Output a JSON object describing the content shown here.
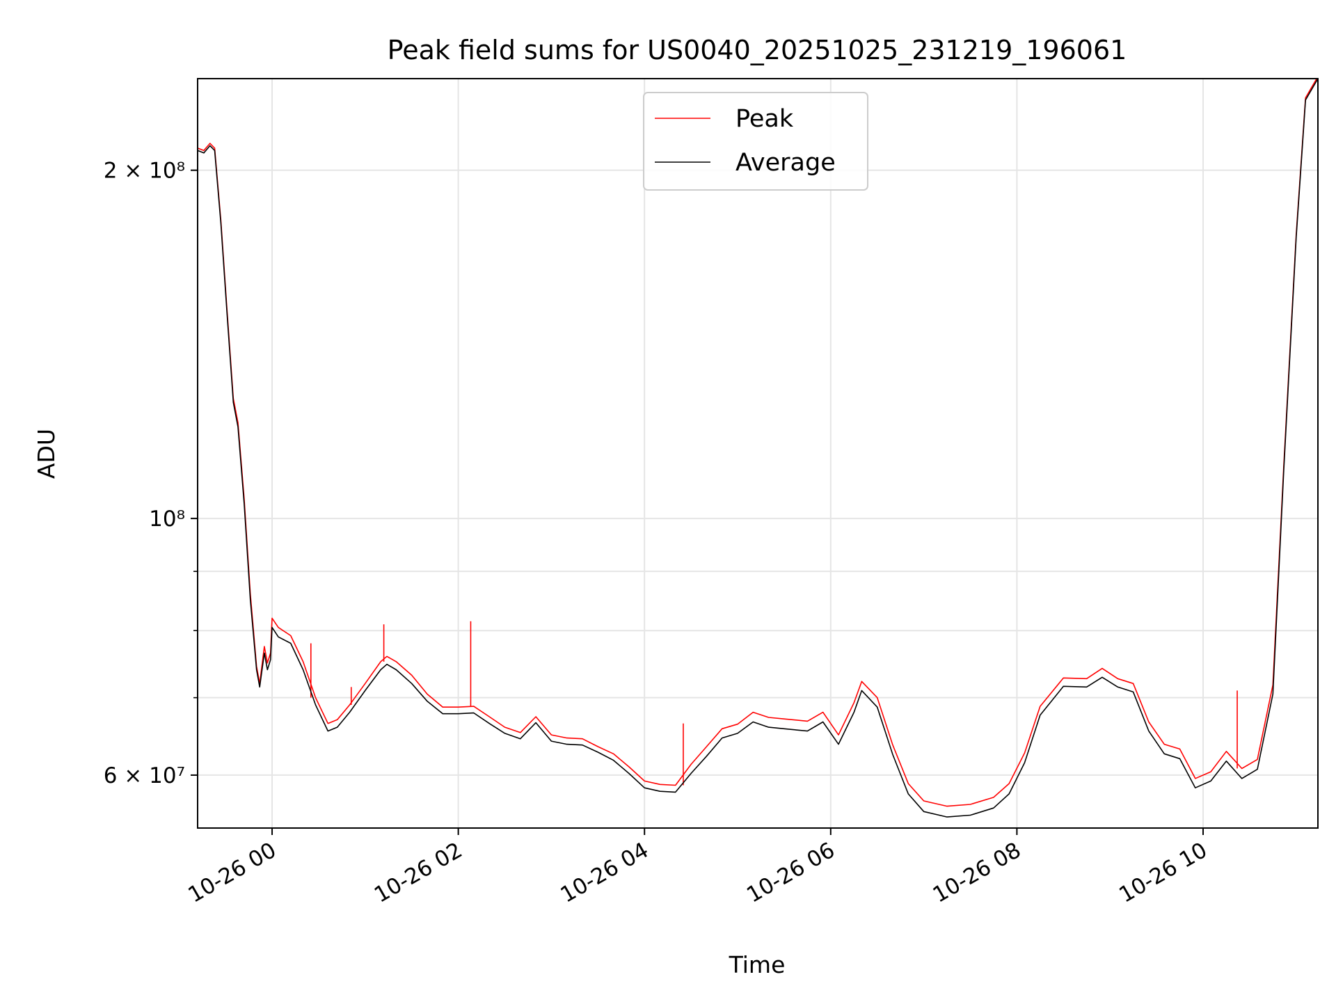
{
  "chart_data": {
    "type": "line",
    "title": "Peak field sums for US0040_20251025_231219_196061",
    "xlabel": "Time",
    "ylabel": "ADU",
    "y_scale": "log",
    "ylim": [
      54000000,
      240000000
    ],
    "xlim": [
      "2025-10-25 23:12",
      "2025-10-26 11:14"
    ],
    "grid": true,
    "legend_position": "upper center",
    "x_ticks": [
      {
        "x": "2025-10-26 00:00",
        "label": "10-26 00"
      },
      {
        "x": "2025-10-26 02:00",
        "label": "10-26 02"
      },
      {
        "x": "2025-10-26 04:00",
        "label": "10-26 04"
      },
      {
        "x": "2025-10-26 06:00",
        "label": "10-26 06"
      },
      {
        "x": "2025-10-26 08:00",
        "label": "10-26 08"
      },
      {
        "x": "2025-10-26 10:00",
        "label": "10-26 10"
      }
    ],
    "y_ticks": [
      {
        "value": 60000000,
        "label": "6 × 10⁷"
      },
      {
        "value": 100000000,
        "label": "10⁸"
      },
      {
        "value": 200000000,
        "label": "2 × 10⁸"
      }
    ],
    "y_minor_ticks": [
      70000000,
      80000000,
      90000000
    ],
    "series": [
      {
        "name": "Average",
        "color": "#000000",
        "points": [
          [
            "2025-10-25 23:12",
            208000000
          ],
          [
            "2025-10-25 23:16",
            207000000
          ],
          [
            "2025-10-25 23:20",
            210000000
          ],
          [
            "2025-10-25 23:23",
            208000000
          ],
          [
            "2025-10-25 23:27",
            180000000
          ],
          [
            "2025-10-25 23:31",
            150000000
          ],
          [
            "2025-10-25 23:35",
            126000000
          ],
          [
            "2025-10-25 23:38",
            120000000
          ],
          [
            "2025-10-25 23:42",
            103000000
          ],
          [
            "2025-10-25 23:46",
            85000000
          ],
          [
            "2025-10-25 23:50",
            74000000
          ],
          [
            "2025-10-25 23:52",
            71500000
          ],
          [
            "2025-10-25 23:55",
            76500000
          ],
          [
            "2025-10-25 23:57",
            74000000
          ],
          [
            "2025-10-25 23:59",
            75500000
          ],
          [
            "2025-10-26 00:00",
            80500000
          ],
          [
            "2025-10-26 00:04",
            79000000
          ],
          [
            "2025-10-26 00:12",
            78000000
          ],
          [
            "2025-10-26 00:20",
            74000000
          ],
          [
            "2025-10-26 00:28",
            69000000
          ],
          [
            "2025-10-26 00:36",
            65500000
          ],
          [
            "2025-10-26 00:42",
            66000000
          ],
          [
            "2025-10-26 00:50",
            68000000
          ],
          [
            "2025-10-26 01:00",
            71000000
          ],
          [
            "2025-10-26 01:10",
            74000000
          ],
          [
            "2025-10-26 01:14",
            74800000
          ],
          [
            "2025-10-26 01:20",
            74000000
          ],
          [
            "2025-10-26 01:30",
            72000000
          ],
          [
            "2025-10-26 01:40",
            69500000
          ],
          [
            "2025-10-26 01:50",
            67800000
          ],
          [
            "2025-10-26 02:00",
            67800000
          ],
          [
            "2025-10-26 02:10",
            67900000
          ],
          [
            "2025-10-26 02:20",
            66500000
          ],
          [
            "2025-10-26 02:30",
            65200000
          ],
          [
            "2025-10-26 02:40",
            64500000
          ],
          [
            "2025-10-26 02:50",
            66600000
          ],
          [
            "2025-10-26 03:00",
            64200000
          ],
          [
            "2025-10-26 03:10",
            63800000
          ],
          [
            "2025-10-26 03:20",
            63700000
          ],
          [
            "2025-10-26 03:30",
            62800000
          ],
          [
            "2025-10-26 03:40",
            61800000
          ],
          [
            "2025-10-26 03:50",
            60200000
          ],
          [
            "2025-10-26 04:00",
            58500000
          ],
          [
            "2025-10-26 04:10",
            58100000
          ],
          [
            "2025-10-26 04:20",
            58000000
          ],
          [
            "2025-10-26 04:30",
            60200000
          ],
          [
            "2025-10-26 04:40",
            62300000
          ],
          [
            "2025-10-26 04:50",
            64600000
          ],
          [
            "2025-10-26 05:00",
            65200000
          ],
          [
            "2025-10-26 05:10",
            66700000
          ],
          [
            "2025-10-26 05:20",
            66000000
          ],
          [
            "2025-10-26 05:30",
            65800000
          ],
          [
            "2025-10-26 05:45",
            65500000
          ],
          [
            "2025-10-26 05:55",
            66700000
          ],
          [
            "2025-10-26 06:05",
            63800000
          ],
          [
            "2025-10-26 06:15",
            68000000
          ],
          [
            "2025-10-26 06:20",
            71000000
          ],
          [
            "2025-10-26 06:30",
            68700000
          ],
          [
            "2025-10-26 06:40",
            62500000
          ],
          [
            "2025-10-26 06:50",
            57800000
          ],
          [
            "2025-10-26 07:00",
            55800000
          ],
          [
            "2025-10-26 07:15",
            55200000
          ],
          [
            "2025-10-26 07:30",
            55400000
          ],
          [
            "2025-10-26 07:45",
            56200000
          ],
          [
            "2025-10-26 07:55",
            57800000
          ],
          [
            "2025-10-26 08:05",
            61500000
          ],
          [
            "2025-10-26 08:15",
            67600000
          ],
          [
            "2025-10-26 08:30",
            71600000
          ],
          [
            "2025-10-26 08:45",
            71500000
          ],
          [
            "2025-10-26 08:55",
            72900000
          ],
          [
            "2025-10-26 09:05",
            71500000
          ],
          [
            "2025-10-26 09:15",
            70800000
          ],
          [
            "2025-10-26 09:25",
            65500000
          ],
          [
            "2025-10-26 09:35",
            62600000
          ],
          [
            "2025-10-26 09:45",
            62000000
          ],
          [
            "2025-10-26 09:55",
            58500000
          ],
          [
            "2025-10-26 10:05",
            59300000
          ],
          [
            "2025-10-26 10:15",
            61700000
          ],
          [
            "2025-10-26 10:25",
            59600000
          ],
          [
            "2025-10-26 10:35",
            60700000
          ],
          [
            "2025-10-26 10:45",
            70500000
          ],
          [
            "2025-10-26 10:52",
            110000000
          ],
          [
            "2025-10-26 11:00",
            175000000
          ],
          [
            "2025-10-26 11:06",
            230000000
          ],
          [
            "2025-10-26 11:14",
            240000000
          ]
        ]
      },
      {
        "name": "Peak",
        "color": "#ff0000",
        "points": [
          [
            "2025-10-25 23:12",
            209000000
          ],
          [
            "2025-10-25 23:16",
            208000000
          ],
          [
            "2025-10-25 23:20",
            211000000
          ],
          [
            "2025-10-25 23:23",
            209000000
          ],
          [
            "2025-10-25 23:27",
            181000000
          ],
          [
            "2025-10-25 23:31",
            151000000
          ],
          [
            "2025-10-25 23:35",
            127000000
          ],
          [
            "2025-10-25 23:38",
            121000000
          ],
          [
            "2025-10-25 23:42",
            104000000
          ],
          [
            "2025-10-25 23:46",
            86000000
          ],
          [
            "2025-10-25 23:50",
            74500000
          ],
          [
            "2025-10-25 23:52",
            72000000
          ],
          [
            "2025-10-25 23:55",
            77500000
          ],
          [
            "2025-10-25 23:57",
            75000000
          ],
          [
            "2025-10-25 23:59",
            76500000
          ],
          [
            "2025-10-26 00:00",
            82000000
          ],
          [
            "2025-10-26 00:04",
            80500000
          ],
          [
            "2025-10-26 00:12",
            79200000
          ],
          [
            "2025-10-26 00:20",
            75200000
          ],
          [
            "2025-10-26 00:28",
            70000000
          ],
          [
            "2025-10-26 00:36",
            66500000
          ],
          [
            "2025-10-26 00:42",
            67000000
          ],
          [
            "2025-10-26 00:50",
            69000000
          ],
          [
            "2025-10-26 01:00",
            72000000
          ],
          [
            "2025-10-26 01:10",
            75200000
          ],
          [
            "2025-10-26 01:14",
            76000000
          ],
          [
            "2025-10-26 01:20",
            75200000
          ],
          [
            "2025-10-26 01:30",
            73200000
          ],
          [
            "2025-10-26 01:40",
            70500000
          ],
          [
            "2025-10-26 01:50",
            68700000
          ],
          [
            "2025-10-26 02:00",
            68700000
          ],
          [
            "2025-10-26 02:10",
            68800000
          ],
          [
            "2025-10-26 02:20",
            67400000
          ],
          [
            "2025-10-26 02:30",
            66000000
          ],
          [
            "2025-10-26 02:40",
            65300000
          ],
          [
            "2025-10-26 02:50",
            67400000
          ],
          [
            "2025-10-26 03:00",
            65000000
          ],
          [
            "2025-10-26 03:10",
            64600000
          ],
          [
            "2025-10-26 03:20",
            64500000
          ],
          [
            "2025-10-26 03:30",
            63500000
          ],
          [
            "2025-10-26 03:40",
            62600000
          ],
          [
            "2025-10-26 03:50",
            61000000
          ],
          [
            "2025-10-26 04:00",
            59300000
          ],
          [
            "2025-10-26 04:10",
            58900000
          ],
          [
            "2025-10-26 04:20",
            58800000
          ],
          [
            "2025-10-26 04:30",
            61300000
          ],
          [
            "2025-10-26 04:40",
            63500000
          ],
          [
            "2025-10-26 04:50",
            65800000
          ],
          [
            "2025-10-26 05:00",
            66400000
          ],
          [
            "2025-10-26 05:10",
            68000000
          ],
          [
            "2025-10-26 05:20",
            67300000
          ],
          [
            "2025-10-26 05:30",
            67100000
          ],
          [
            "2025-10-26 05:45",
            66800000
          ],
          [
            "2025-10-26 05:55",
            68000000
          ],
          [
            "2025-10-26 06:05",
            65000000
          ],
          [
            "2025-10-26 06:15",
            69300000
          ],
          [
            "2025-10-26 06:20",
            72300000
          ],
          [
            "2025-10-26 06:30",
            70000000
          ],
          [
            "2025-10-26 06:40",
            63700000
          ],
          [
            "2025-10-26 06:50",
            59000000
          ],
          [
            "2025-10-26 07:00",
            57000000
          ],
          [
            "2025-10-26 07:15",
            56400000
          ],
          [
            "2025-10-26 07:30",
            56600000
          ],
          [
            "2025-10-26 07:45",
            57400000
          ],
          [
            "2025-10-26 07:55",
            59000000
          ],
          [
            "2025-10-26 08:05",
            62700000
          ],
          [
            "2025-10-26 08:15",
            68800000
          ],
          [
            "2025-10-26 08:30",
            72800000
          ],
          [
            "2025-10-26 08:45",
            72700000
          ],
          [
            "2025-10-26 08:55",
            74200000
          ],
          [
            "2025-10-26 09:05",
            72700000
          ],
          [
            "2025-10-26 09:15",
            72000000
          ],
          [
            "2025-10-26 09:25",
            66700000
          ],
          [
            "2025-10-26 09:35",
            63800000
          ],
          [
            "2025-10-26 09:45",
            63200000
          ],
          [
            "2025-10-26 09:55",
            59600000
          ],
          [
            "2025-10-26 10:05",
            60400000
          ],
          [
            "2025-10-26 10:15",
            62900000
          ],
          [
            "2025-10-26 10:25",
            60800000
          ],
          [
            "2025-10-26 10:35",
            61900000
          ],
          [
            "2025-10-26 10:45",
            71800000
          ],
          [
            "2025-10-26 10:52",
            111000000
          ],
          [
            "2025-10-26 11:00",
            176000000
          ],
          [
            "2025-10-26 11:06",
            231000000
          ],
          [
            "2025-10-26 11:14",
            241000000
          ]
        ],
        "spikes": [
          [
            "2025-10-26 00:25",
            78000000
          ],
          [
            "2025-10-26 00:51",
            71500000
          ],
          [
            "2025-10-26 01:12",
            81000000
          ],
          [
            "2025-10-26 02:08",
            81500000
          ],
          [
            "2025-10-26 04:25",
            66500000
          ],
          [
            "2025-10-26 10:22",
            71000000
          ]
        ]
      }
    ]
  }
}
